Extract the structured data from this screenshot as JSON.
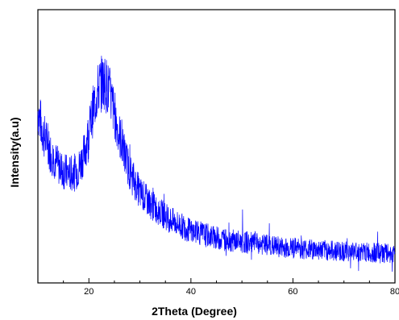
{
  "chart_data": {
    "type": "line",
    "title": "",
    "xlabel": "2Theta (Degree)",
    "ylabel": "Intensity(a.u)",
    "xlim": [
      10,
      80
    ],
    "ylim": [
      0,
      1
    ],
    "xticks": [
      20,
      40,
      60,
      80
    ],
    "yticks_shown": false,
    "grid": false,
    "legend": "none",
    "series_color": "#0000ff",
    "series": [
      {
        "x": [
          10,
          11,
          12,
          13,
          14,
          15,
          16,
          17,
          18,
          19,
          20,
          21,
          22,
          23,
          24,
          25,
          26,
          27,
          28,
          29,
          30,
          32,
          34,
          36,
          38,
          40,
          42,
          44,
          46,
          48,
          50,
          52,
          54,
          56,
          58,
          60,
          62,
          64,
          66,
          68,
          70,
          72,
          74,
          76,
          78,
          80
        ],
        "y": [
          0.63,
          0.55,
          0.5,
          0.46,
          0.43,
          0.41,
          0.4,
          0.4,
          0.42,
          0.47,
          0.55,
          0.65,
          0.72,
          0.74,
          0.7,
          0.62,
          0.54,
          0.47,
          0.41,
          0.37,
          0.33,
          0.29,
          0.26,
          0.23,
          0.21,
          0.19,
          0.18,
          0.17,
          0.16,
          0.155,
          0.15,
          0.145,
          0.14,
          0.135,
          0.13,
          0.128,
          0.125,
          0.122,
          0.12,
          0.118,
          0.116,
          0.114,
          0.112,
          0.11,
          0.108,
          0.106
        ]
      }
    ]
  }
}
